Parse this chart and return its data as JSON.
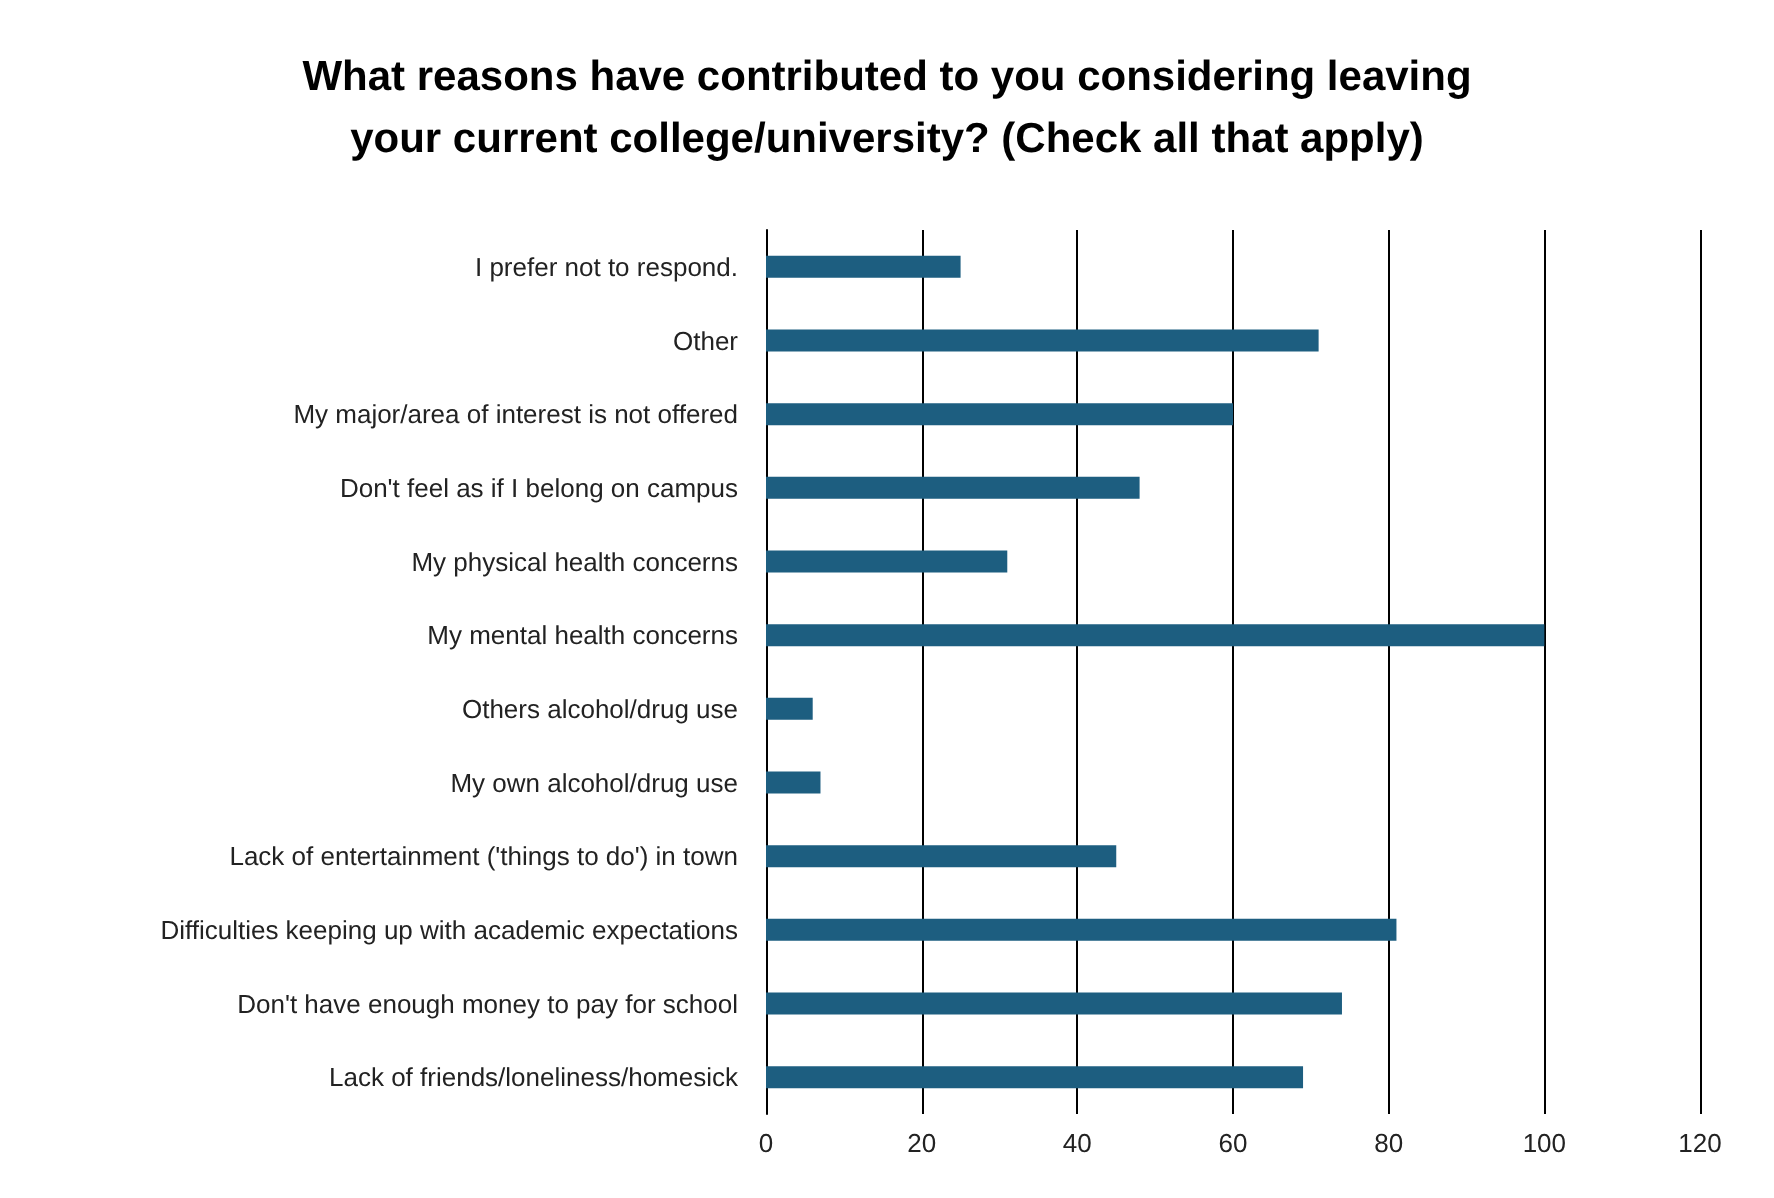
{
  "chart_data": {
    "type": "bar",
    "orientation": "horizontal",
    "title": "What reasons have contributed to you considering leaving\nyour current college/university? (Check all that apply)",
    "categories": [
      "I prefer not to respond.",
      "Other",
      "My major/area of interest is not offered",
      "Don't feel as if I belong on campus",
      "My physical health concerns",
      "My mental health concerns",
      "Others alcohol/drug use",
      "My own alcohol/drug use",
      "Lack of entertainment ('things to do') in town",
      "Difficulties keeping up with academic expectations",
      "Don't have enough money to pay for school",
      "Lack of friends/loneliness/homesick"
    ],
    "values": [
      25,
      71,
      60,
      48,
      31,
      100,
      6,
      7,
      45,
      81,
      74,
      69
    ],
    "color": "#1d5e80",
    "xlim": [
      0,
      120
    ],
    "xticks": [
      0,
      20,
      40,
      60,
      80,
      100,
      120
    ],
    "grid": "x"
  }
}
